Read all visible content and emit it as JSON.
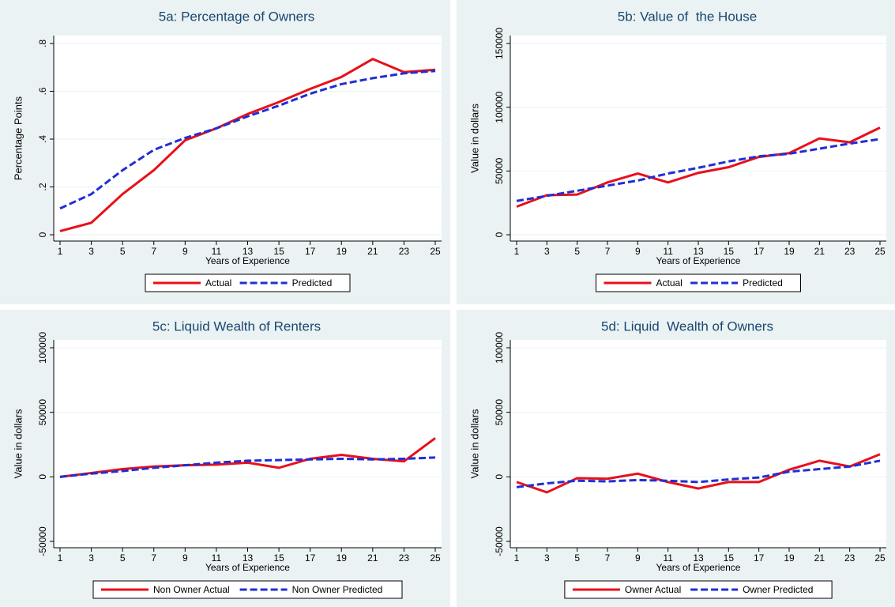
{
  "chart_data": [
    {
      "type": "line",
      "title": "5a: Percentage of Owners",
      "y_label": "Percentage Points",
      "x_label": "Years of Experience",
      "x": [
        1,
        3,
        5,
        7,
        9,
        11,
        13,
        15,
        17,
        19,
        21,
        23,
        25
      ],
      "xlim": [
        1,
        25
      ],
      "xticks": [
        1,
        3,
        5,
        7,
        9,
        11,
        13,
        15,
        17,
        19,
        21,
        23,
        25
      ],
      "ylim": [
        0,
        0.8
      ],
      "yticks": [
        0,
        {
          "value": 0.2,
          "label": ".2"
        },
        {
          "value": 0.4,
          "label": ".4"
        },
        {
          "value": 0.6,
          "label": ".6"
        },
        {
          "value": 0.8,
          "label": ".8"
        }
      ],
      "grid": true,
      "series": [
        {
          "name": "Actual",
          "color": "#e8101a",
          "dashed": false,
          "values": [
            0.015,
            0.05,
            0.17,
            0.27,
            0.395,
            0.445,
            0.505,
            0.555,
            0.61,
            0.66,
            0.735,
            0.68,
            0.69
          ]
        },
        {
          "name": "Predicted",
          "color": "#1f2fd6",
          "dashed": true,
          "values": [
            0.11,
            0.17,
            0.27,
            0.355,
            0.405,
            0.445,
            0.495,
            0.54,
            0.59,
            0.63,
            0.655,
            0.675,
            0.685
          ]
        }
      ]
    },
    {
      "type": "line",
      "title": "5b: Value of  the House",
      "y_label": "Value in dollars",
      "x_label": "Years of Experience",
      "x": [
        1,
        3,
        5,
        7,
        9,
        11,
        13,
        15,
        17,
        19,
        21,
        23,
        25
      ],
      "xlim": [
        1,
        25
      ],
      "xticks": [
        1,
        3,
        5,
        7,
        9,
        11,
        13,
        15,
        17,
        19,
        21,
        23,
        25
      ],
      "ylim": [
        0,
        150000
      ],
      "yticks": [
        0,
        50000,
        100000,
        150000
      ],
      "grid": true,
      "series": [
        {
          "name": "Actual",
          "color": "#e8101a",
          "dashed": false,
          "values": [
            22000,
            31000,
            31500,
            41000,
            48000,
            41000,
            48500,
            53000,
            61000,
            64000,
            75500,
            72500,
            84000
          ]
        },
        {
          "name": "Predicted",
          "color": "#1f2fd6",
          "dashed": true,
          "values": [
            26500,
            30500,
            34500,
            38500,
            42500,
            48000,
            52500,
            57500,
            61500,
            63500,
            67500,
            71500,
            75000
          ]
        }
      ]
    },
    {
      "type": "line",
      "title": "5c: Liquid Wealth of Renters",
      "y_label": "Value in dollars",
      "x_label": "Years of Experience",
      "x": [
        1,
        3,
        5,
        7,
        9,
        11,
        13,
        15,
        17,
        19,
        21,
        23,
        25
      ],
      "xlim": [
        1,
        25
      ],
      "xticks": [
        1,
        3,
        5,
        7,
        9,
        11,
        13,
        15,
        17,
        19,
        21,
        23,
        25
      ],
      "ylim": [
        -50000,
        100000
      ],
      "yticks": [
        -50000,
        0,
        50000,
        100000
      ],
      "grid": true,
      "series": [
        {
          "name": "Non Owner Actual",
          "color": "#e8101a",
          "dashed": false,
          "values": [
            0,
            3000,
            6000,
            8000,
            9000,
            9500,
            11000,
            7000,
            14000,
            17000,
            14000,
            12000,
            30000
          ]
        },
        {
          "name": "Non Owner Predicted",
          "color": "#1f2fd6",
          "dashed": true,
          "values": [
            0,
            2500,
            4500,
            7000,
            9000,
            11000,
            12500,
            13000,
            13500,
            14000,
            13500,
            14000,
            15000
          ]
        }
      ]
    },
    {
      "type": "line",
      "title": "5d: Liquid  Wealth of Owners",
      "y_label": "Value in dollars",
      "x_label": "Years of Experience",
      "x": [
        1,
        3,
        5,
        7,
        9,
        11,
        13,
        15,
        17,
        19,
        21,
        23,
        25
      ],
      "xlim": [
        1,
        25
      ],
      "xticks": [
        1,
        3,
        5,
        7,
        9,
        11,
        13,
        15,
        17,
        19,
        21,
        23,
        25
      ],
      "ylim": [
        -50000,
        100000
      ],
      "yticks": [
        -50000,
        0,
        50000,
        100000
      ],
      "grid": true,
      "series": [
        {
          "name": "Owner Actual",
          "color": "#e8101a",
          "dashed": false,
          "values": [
            -4000,
            -12000,
            -1000,
            -1500,
            2500,
            -4000,
            -9000,
            -4000,
            -4000,
            5500,
            12500,
            8000,
            17500
          ]
        },
        {
          "name": "Owner Predicted",
          "color": "#1f2fd6",
          "dashed": true,
          "values": [
            -8000,
            -5000,
            -3000,
            -3500,
            -2500,
            -3000,
            -4000,
            -2000,
            -500,
            4000,
            6000,
            8000,
            12500
          ]
        }
      ]
    }
  ]
}
